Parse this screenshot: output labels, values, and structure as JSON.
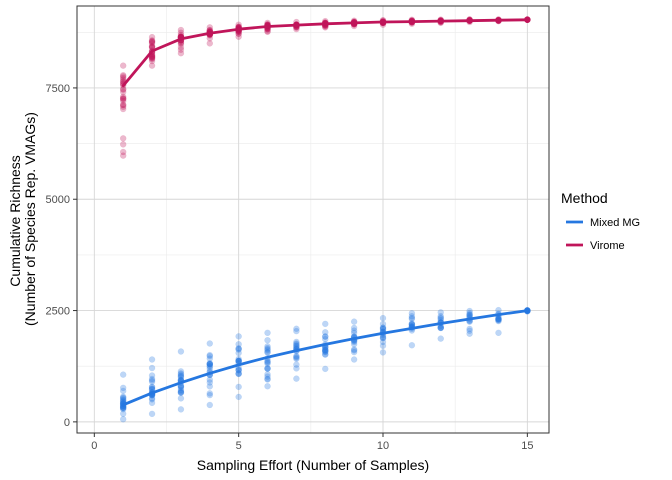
{
  "chart_data": {
    "type": "scatter",
    "xlabel": "Sampling Effort (Number of Samples)",
    "ylabel_lines": [
      "Cumulative Richness",
      "(Number of Species Rep. VMAGs)"
    ],
    "xlim": [
      -0.6,
      15.75
    ],
    "ylim": [
      -250,
      9340
    ],
    "x_ticks": [
      0,
      5,
      10,
      15
    ],
    "x_tick_labels": [
      "0",
      "5",
      "10",
      "15"
    ],
    "y_ticks": [
      0,
      2500,
      5000,
      7500
    ],
    "y_tick_labels": [
      "0",
      "2500",
      "5000",
      "7500"
    ],
    "grid": true,
    "legend": {
      "title": "Method",
      "position": "right",
      "entries": [
        "Mixed MG",
        "Virome"
      ]
    },
    "series": [
      {
        "name": "Mixed MG",
        "color": "#2577e0",
        "x": [
          1,
          2,
          3,
          4,
          5,
          6,
          7,
          8,
          9,
          10,
          11,
          12,
          13,
          14,
          15
        ],
        "mean_curve": [
          380,
          650,
          880,
          1090,
          1280,
          1450,
          1600,
          1740,
          1870,
          1990,
          2100,
          2210,
          2310,
          2410,
          2500
        ],
        "point_min": [
          60,
          180,
          280,
          380,
          560,
          800,
          970,
          1190,
          1400,
          1560,
          1720,
          1870,
          1980,
          2000,
          2480
        ],
        "point_max": [
          1060,
          1400,
          1580,
          1760,
          1920,
          2000,
          2090,
          2200,
          2250,
          2330,
          2440,
          2460,
          2490,
          2510,
          2510
        ]
      },
      {
        "name": "Virome",
        "color": "#c0155a",
        "x": [
          1,
          2,
          3,
          4,
          5,
          6,
          7,
          8,
          9,
          10,
          11,
          12,
          13,
          14,
          15
        ],
        "mean_curve": [
          7550,
          8330,
          8600,
          8730,
          8820,
          8880,
          8910,
          8940,
          8960,
          8980,
          8990,
          9000,
          9010,
          9020,
          9030
        ],
        "point_min": [
          5980,
          8000,
          8280,
          8500,
          8650,
          8760,
          8820,
          8860,
          8890,
          8920,
          8940,
          8960,
          8980,
          9000,
          9030
        ],
        "point_max": [
          8000,
          8640,
          8800,
          8860,
          8920,
          8960,
          8980,
          9000,
          9010,
          9020,
          9030,
          9035,
          9040,
          9040,
          9040
        ]
      }
    ]
  }
}
